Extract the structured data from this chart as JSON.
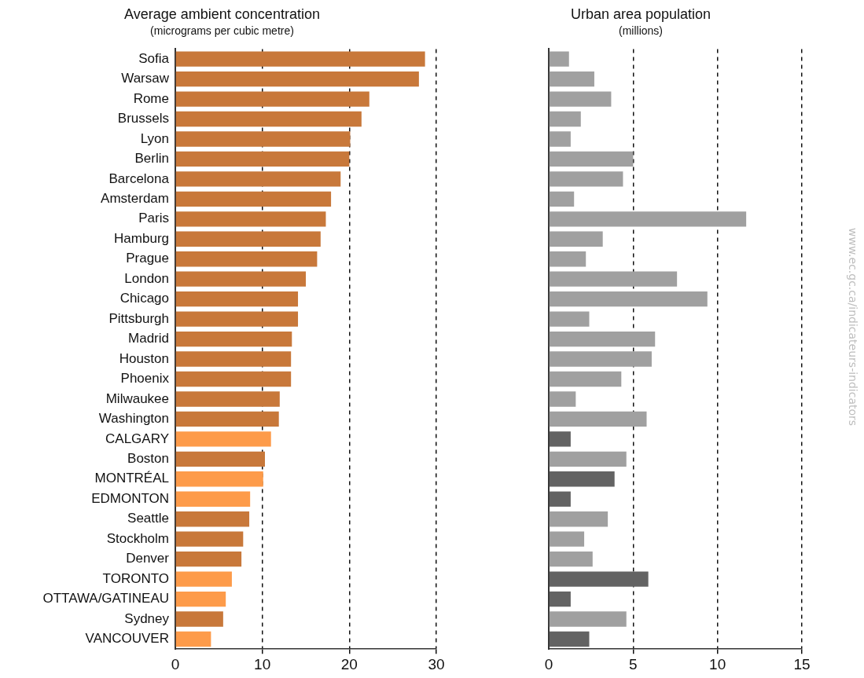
{
  "chart_data": [
    {
      "type": "bar",
      "orientation": "horizontal",
      "title": "Average ambient concentration",
      "subtitle": "(micrograms per cubic metre)",
      "categories": [
        "Sofia",
        "Warsaw",
        "Rome",
        "Brussels",
        "Lyon",
        "Berlin",
        "Barcelona",
        "Amsterdam",
        "Paris",
        "Hamburg",
        "Prague",
        "London",
        "Chicago",
        "Pittsburgh",
        "Madrid",
        "Houston",
        "Phoenix",
        "Milwaukee",
        "Washington",
        "CALGARY",
        "Boston",
        "MONTRÉAL",
        "EDMONTON",
        "Seattle",
        "Stockholm",
        "Denver",
        "TORONTO",
        "OTTAWA/GATINEAU",
        "Sydney",
        "VANCOUVER"
      ],
      "values": [
        28.7,
        28.0,
        22.3,
        21.4,
        20.1,
        20.0,
        19.0,
        17.9,
        17.3,
        16.7,
        16.3,
        15.0,
        14.1,
        14.1,
        13.4,
        13.3,
        13.3,
        12.0,
        11.9,
        11.0,
        10.3,
        10.1,
        8.6,
        8.5,
        7.8,
        7.6,
        6.5,
        5.8,
        5.5,
        4.1
      ],
      "colors": [
        "#c8783a",
        "#c8783a",
        "#c8783a",
        "#c8783a",
        "#c8783a",
        "#c8783a",
        "#c8783a",
        "#c8783a",
        "#c8783a",
        "#c8783a",
        "#c8783a",
        "#c8783a",
        "#c8783a",
        "#c8783a",
        "#c8783a",
        "#c8783a",
        "#c8783a",
        "#c8783a",
        "#c8783a",
        "#fd9b4a",
        "#c8783a",
        "#fd9b4a",
        "#fd9b4a",
        "#c8783a",
        "#c8783a",
        "#c8783a",
        "#fd9b4a",
        "#fd9b4a",
        "#c8783a",
        "#fd9b4a"
      ],
      "xlim": [
        0,
        30
      ],
      "xticks": [
        0,
        10,
        20,
        30
      ],
      "grid": "x",
      "legend": false
    },
    {
      "type": "bar",
      "orientation": "horizontal",
      "title": "Urban area population",
      "subtitle": "(millions)",
      "categories": [
        null,
        null,
        null,
        null,
        null,
        null,
        null,
        null,
        null,
        null,
        null,
        null,
        null,
        null,
        null,
        null,
        null,
        null,
        null,
        null,
        null,
        null,
        null,
        null,
        null,
        null,
        null,
        null,
        null,
        null
      ],
      "values": [
        1.2,
        2.7,
        3.7,
        1.9,
        1.3,
        5.0,
        4.4,
        1.5,
        11.7,
        3.2,
        2.2,
        7.6,
        9.4,
        2.4,
        6.3,
        6.1,
        4.3,
        1.6,
        5.8,
        1.3,
        4.6,
        3.9,
        1.3,
        3.5,
        2.1,
        2.6,
        5.9,
        1.3,
        4.6,
        2.4
      ],
      "colors": [
        "#a0a0a0",
        "#a0a0a0",
        "#a0a0a0",
        "#a0a0a0",
        "#a0a0a0",
        "#a0a0a0",
        "#a0a0a0",
        "#a0a0a0",
        "#a0a0a0",
        "#a0a0a0",
        "#a0a0a0",
        "#a0a0a0",
        "#a0a0a0",
        "#a0a0a0",
        "#a0a0a0",
        "#a0a0a0",
        "#a0a0a0",
        "#a0a0a0",
        "#a0a0a0",
        "#636363",
        "#a0a0a0",
        "#636363",
        "#636363",
        "#a0a0a0",
        "#a0a0a0",
        "#a0a0a0",
        "#636363",
        "#636363",
        "#a0a0a0",
        "#636363"
      ],
      "xlim": [
        0,
        15
      ],
      "xticks": [
        0,
        5,
        10,
        15
      ],
      "grid": "x",
      "legend": false,
      "tick_labels": "x",
      "annotations": [
        "www.ec.gc.ca/indicateurs-indicators"
      ]
    }
  ]
}
